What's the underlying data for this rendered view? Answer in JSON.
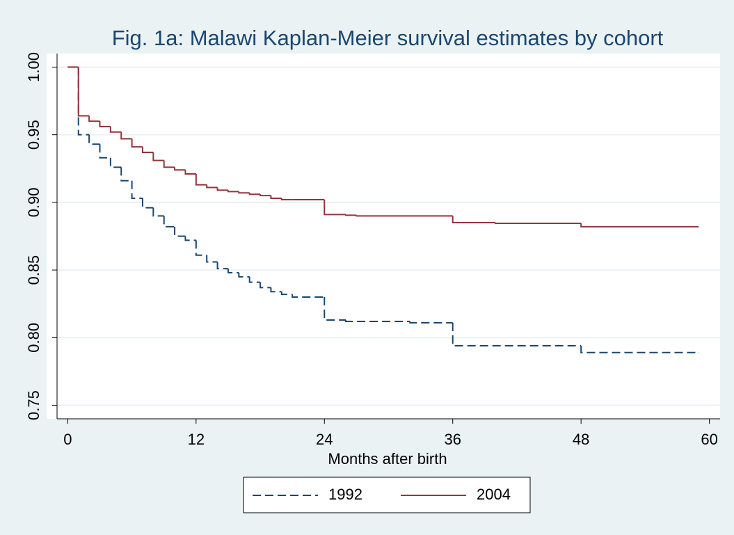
{
  "chart_data": {
    "type": "line",
    "step": "post",
    "title": "Fig. 1a: Malawi Kaplan-Meier survival estimates by cohort",
    "xlabel": "Months after birth",
    "xlim": [
      -1,
      61
    ],
    "xticks": [
      0,
      12,
      24,
      36,
      48,
      60
    ],
    "ylim": [
      0.74,
      1.01
    ],
    "yticks": [
      0.75,
      {
        "value": 0.8,
        "label": "0.80"
      },
      0.85,
      {
        "value": 0.9,
        "label": "0.90"
      },
      0.95,
      {
        "value": 1.0,
        "label": "1.00"
      }
    ],
    "grid": true,
    "legend": "bottom",
    "series": [
      {
        "name": "1992",
        "color": "#1a476f",
        "dash": true,
        "x": [
          0,
          1,
          2,
          3,
          4,
          5,
          6,
          7,
          8,
          9,
          10,
          11,
          12,
          13,
          14,
          15,
          16,
          17,
          18,
          19,
          20,
          21,
          24,
          26,
          32,
          36,
          48,
          59
        ],
        "values": [
          1.0,
          0.95,
          0.943,
          0.933,
          0.926,
          0.916,
          0.903,
          0.896,
          0.89,
          0.882,
          0.875,
          0.872,
          0.861,
          0.856,
          0.851,
          0.848,
          0.845,
          0.841,
          0.837,
          0.834,
          0.832,
          0.83,
          0.813,
          0.812,
          0.811,
          0.794,
          0.789,
          0.789
        ]
      },
      {
        "name": "2004",
        "color": "#90353b",
        "dash": false,
        "x": [
          0,
          1,
          2,
          3,
          4,
          5,
          6,
          7,
          8,
          9,
          10,
          11,
          12,
          13,
          14,
          15,
          16,
          17,
          18,
          19,
          20,
          21,
          24,
          26,
          27,
          36,
          40,
          48,
          59
        ],
        "values": [
          1.0,
          0.964,
          0.96,
          0.956,
          0.952,
          0.947,
          0.941,
          0.937,
          0.931,
          0.926,
          0.924,
          0.921,
          0.913,
          0.911,
          0.909,
          0.908,
          0.907,
          0.906,
          0.905,
          0.903,
          0.902,
          0.902,
          0.891,
          0.8905,
          0.89,
          0.885,
          0.8845,
          0.882,
          0.882
        ]
      }
    ]
  }
}
